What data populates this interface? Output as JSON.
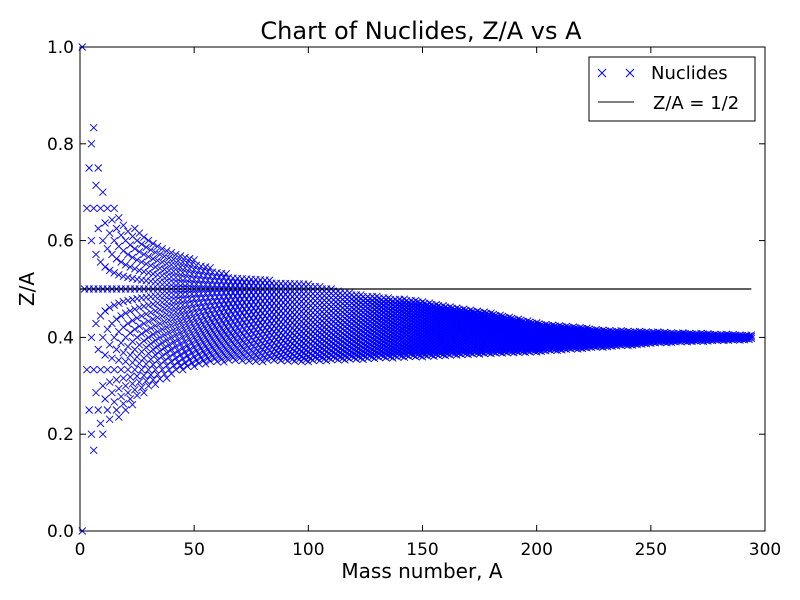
{
  "chart_data": {
    "type": "scatter",
    "title": "Chart of Nuclides, Z/A vs A",
    "xlabel": "Mass number, A",
    "ylabel": "Z/A",
    "xlim": [
      0,
      300
    ],
    "ylim": [
      0,
      1
    ],
    "xticks": [
      0,
      50,
      100,
      150,
      200,
      250,
      300
    ],
    "yticks": [
      0.0,
      0.2,
      0.4,
      0.6,
      0.8,
      1.0
    ],
    "xtick_labels": [
      "0",
      "50",
      "100",
      "150",
      "200",
      "250",
      "300"
    ],
    "ytick_labels": [
      "0.0",
      "0.2",
      "0.4",
      "0.6",
      "0.8",
      "1.0"
    ],
    "legend_position": "top-right",
    "series": [
      {
        "name": "Nuclides",
        "marker": "x",
        "color": "#0000ff",
        "generation": "all Z with Z/A inside the observed band at each mass number A = 1..294",
        "A_min": 1,
        "A_max": 294,
        "band_lower_ratio": [
          [
            1,
            0.0
          ],
          [
            6,
            0.14
          ],
          [
            10,
            0.2
          ],
          [
            20,
            0.24
          ],
          [
            30,
            0.29
          ],
          [
            40,
            0.32
          ],
          [
            50,
            0.34
          ],
          [
            65,
            0.35
          ],
          [
            100,
            0.35
          ],
          [
            150,
            0.36
          ],
          [
            200,
            0.37
          ],
          [
            230,
            0.38
          ],
          [
            260,
            0.39
          ],
          [
            294,
            0.395
          ]
        ],
        "band_upper_ratio": [
          [
            1,
            1.0
          ],
          [
            6,
            0.84
          ],
          [
            10,
            0.7
          ],
          [
            20,
            0.64
          ],
          [
            30,
            0.61
          ],
          [
            40,
            0.58
          ],
          [
            50,
            0.56
          ],
          [
            65,
            0.53
          ],
          [
            80,
            0.52
          ],
          [
            100,
            0.51
          ],
          [
            120,
            0.49
          ],
          [
            150,
            0.475
          ],
          [
            180,
            0.45
          ],
          [
            200,
            0.43
          ],
          [
            230,
            0.415
          ],
          [
            260,
            0.41
          ],
          [
            294,
            0.405
          ]
        ]
      },
      {
        "name": "Z/A = 1/2",
        "type": "line",
        "color": "#000000",
        "x": [
          0,
          294
        ],
        "y": [
          0.5,
          0.5
        ]
      }
    ]
  }
}
